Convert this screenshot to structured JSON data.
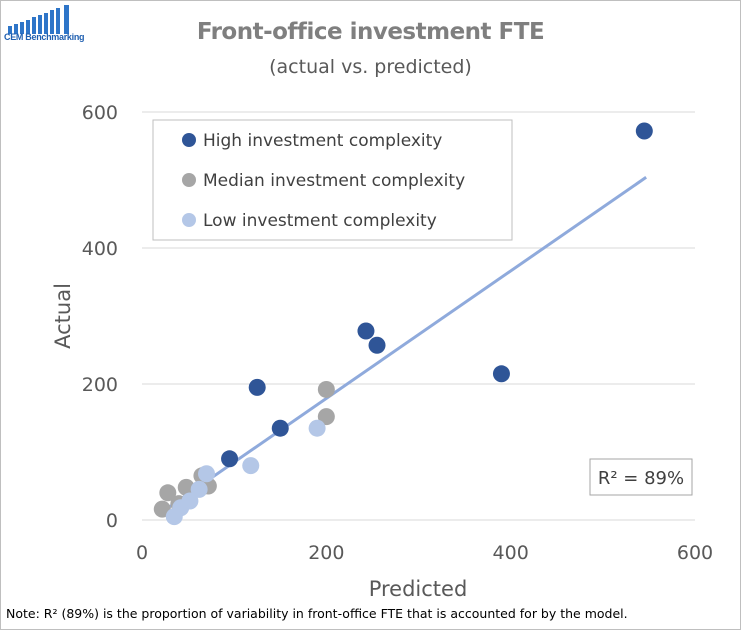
{
  "logo": {
    "text": "CEM Benchmarking"
  },
  "chart_data": {
    "type": "scatter",
    "title": "Front-office investment FTE",
    "subtitle": "(actual vs. predicted)",
    "xlabel": "Predicted",
    "ylabel": "Actual",
    "xlim": [
      0,
      600
    ],
    "ylim": [
      0,
      600
    ],
    "xticks": [
      "0",
      "200",
      "400",
      "600"
    ],
    "yticks": [
      "0",
      "200",
      "400",
      "600"
    ],
    "grid": "horizontal",
    "legend_position": "top-left",
    "series": [
      {
        "name": "High investment complexity",
        "color": "#2f5597",
        "points": [
          [
            545,
            572
          ],
          [
            125,
            195
          ],
          [
            243,
            278
          ],
          [
            255,
            257
          ],
          [
            390,
            215
          ],
          [
            150,
            135
          ],
          [
            95,
            90
          ]
        ]
      },
      {
        "name": "Median investment complexity",
        "color": "#a6a6a6",
        "points": [
          [
            200,
            192
          ],
          [
            200,
            152
          ],
          [
            28,
            40
          ],
          [
            48,
            48
          ],
          [
            72,
            50
          ],
          [
            65,
            65
          ],
          [
            22,
            16
          ],
          [
            40,
            24
          ]
        ]
      },
      {
        "name": "Low investment complexity",
        "color": "#b4c7e7",
        "points": [
          [
            118,
            80
          ],
          [
            190,
            135
          ],
          [
            70,
            68
          ],
          [
            62,
            45
          ],
          [
            52,
            28
          ],
          [
            42,
            18
          ],
          [
            35,
            5
          ]
        ]
      }
    ],
    "trendline": {
      "color": "#8faadc",
      "x": [
        22,
        547
      ],
      "y": [
        12,
        504
      ]
    },
    "annotation": "R² = 89%"
  },
  "note": "Note: R² (89%) is the proportion of variability in front-office FTE that is accounted for by the model."
}
